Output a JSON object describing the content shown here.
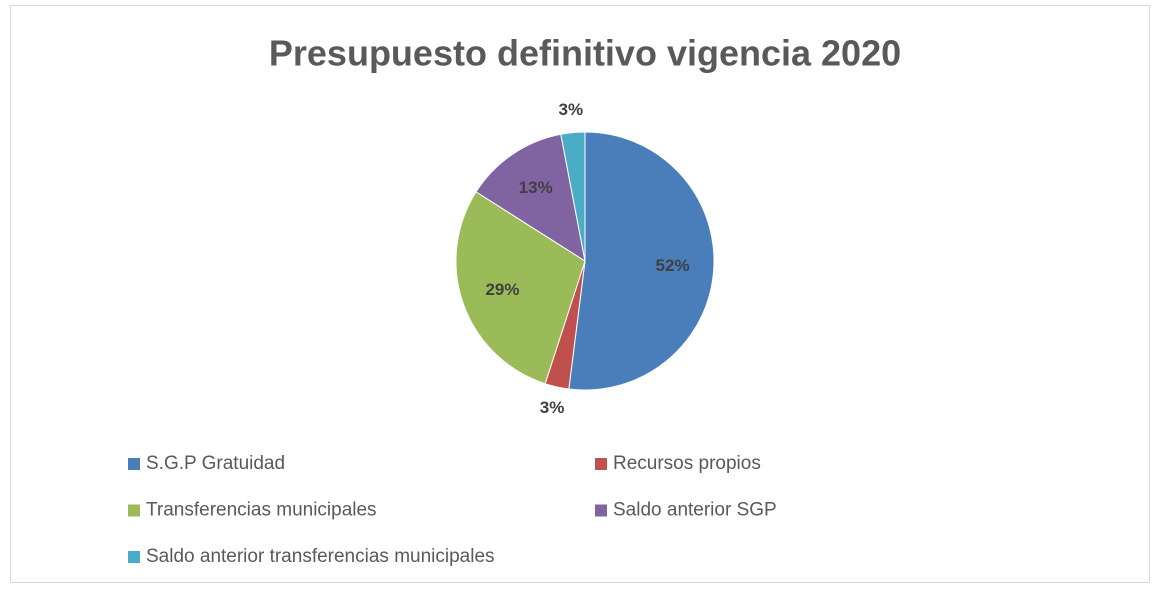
{
  "chart_data": {
    "type": "pie",
    "title": "Presupuesto definitivo vigencia 2020",
    "categories": [
      "S.G.P Gratuidad",
      "Recursos propios",
      "Transferencias municipales",
      "Saldo anterior SGP",
      "Saldo anterior transferencias municipales"
    ],
    "values": [
      52,
      3,
      29,
      13,
      3
    ],
    "value_labels": [
      "52%",
      "3%",
      "29%",
      "13%",
      "3%"
    ],
    "colors": [
      "#4a7ebb",
      "#c0504d",
      "#9bbb59",
      "#8064a2",
      "#4bacc6"
    ],
    "legend": "bottom"
  }
}
